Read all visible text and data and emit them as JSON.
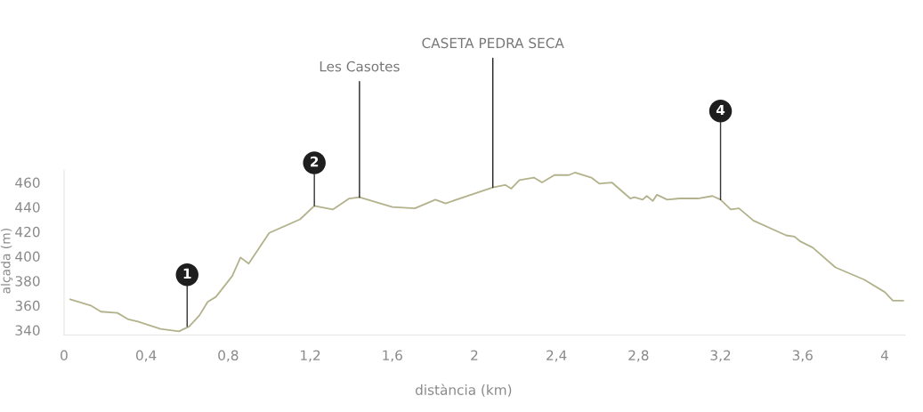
{
  "chart_data": {
    "type": "line",
    "xlabel": "distància (km)",
    "ylabel": "alçada (m)",
    "x": [
      0.03,
      0.13,
      0.18,
      0.26,
      0.31,
      0.36,
      0.47,
      0.56,
      0.61,
      0.66,
      0.7,
      0.74,
      0.82,
      0.86,
      0.9,
      1.0,
      1.15,
      1.22,
      1.31,
      1.39,
      1.44,
      1.52,
      1.6,
      1.71,
      1.81,
      1.86,
      2.09,
      2.15,
      2.18,
      2.22,
      2.29,
      2.33,
      2.39,
      2.46,
      2.49,
      2.57,
      2.61,
      2.67,
      2.76,
      2.78,
      2.82,
      2.84,
      2.87,
      2.89,
      2.94,
      3.0,
      3.09,
      3.16,
      3.2,
      3.25,
      3.29,
      3.36,
      3.52,
      3.56,
      3.59,
      3.65,
      3.76,
      3.9,
      4.0,
      4.04,
      4.09
    ],
    "series": [
      {
        "color": "#b3b28c",
        "values": [
          365,
          360,
          355,
          354,
          349,
          347,
          341,
          339,
          343,
          352,
          363,
          367,
          384,
          399,
          394,
          419,
          430,
          441,
          438,
          447,
          448,
          444,
          440,
          439,
          446,
          443,
          456,
          458,
          455,
          462,
          464,
          460,
          466,
          466,
          468,
          464,
          459,
          460,
          447,
          448,
          446,
          449,
          445,
          450,
          446,
          447,
          447,
          449,
          446,
          438,
          439,
          429,
          417,
          416,
          412,
          407,
          391,
          381,
          371,
          364,
          364
        ]
      }
    ],
    "xlim": [
      0,
      4.1
    ],
    "ylim": [
      336,
      470
    ],
    "xticks": [
      0,
      {
        "value": 0.4,
        "label": "0,4"
      },
      {
        "value": 0.8,
        "label": "0,8"
      },
      {
        "value": 1.2,
        "label": "1,2"
      },
      {
        "value": 1.6,
        "label": "1,6"
      },
      2,
      {
        "value": 2.4,
        "label": "2,4"
      },
      {
        "value": 2.8,
        "label": "2,8"
      },
      {
        "value": 3.2,
        "label": "3,2"
      },
      {
        "value": 3.6,
        "label": "3,6"
      },
      4
    ],
    "yticks": [
      340,
      360,
      380,
      400,
      420,
      440,
      460
    ],
    "grid": false,
    "marker": "none",
    "line_style": "solid",
    "annotations": [
      {
        "text": "1",
        "x": 0.6,
        "y": 343
      },
      {
        "text": "2",
        "x": 1.22,
        "y": 441
      },
      {
        "text": "Les Casotes",
        "x": 1.44,
        "y": 448
      },
      {
        "text": "CASETA PEDRA SECA",
        "x": 2.09,
        "y": 456
      },
      {
        "text": "4",
        "x": 3.2,
        "y": 446
      }
    ]
  }
}
